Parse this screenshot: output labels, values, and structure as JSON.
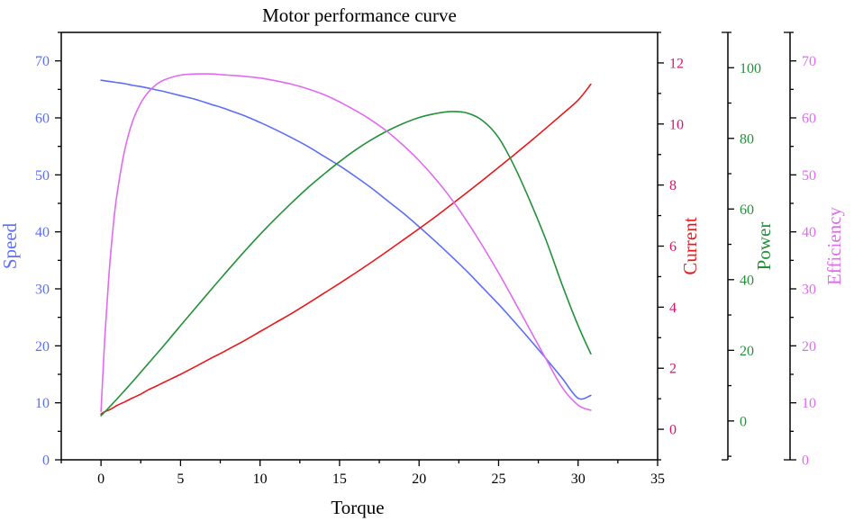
{
  "chart_data": {
    "type": "line",
    "title": "Motor performance curve",
    "xlabel": "Torque",
    "xlim": [
      -2.5,
      35
    ],
    "xticks": [
      0,
      5,
      10,
      15,
      20,
      25,
      30,
      35
    ],
    "x": [
      0,
      0.25,
      0.5,
      0.75,
      1,
      1.5,
      2,
      2.5,
      3,
      3.5,
      4,
      5,
      6,
      7,
      7.5,
      8,
      9,
      10,
      11,
      12,
      13,
      14,
      15,
      16,
      17,
      18,
      19,
      20,
      21,
      22,
      23,
      24,
      25,
      26,
      27,
      28,
      29,
      30,
      30.8
    ],
    "axes": [
      {
        "id": "speed",
        "label": "Speed",
        "color": "#5b6ef5",
        "ylim": [
          0,
          75
        ],
        "ticks": [
          0,
          10,
          20,
          30,
          40,
          50,
          60,
          70
        ],
        "position": "left"
      },
      {
        "id": "current",
        "label": "Current",
        "color": "#e8181b",
        "tick_color": "#d6156a",
        "ylim": [
          -1,
          13
        ],
        "ticks": [
          0,
          2,
          4,
          6,
          8,
          10,
          12
        ],
        "position": "right"
      },
      {
        "id": "power",
        "label": "Power",
        "color": "#22913a",
        "ylim": [
          -11,
          110
        ],
        "ticks": [
          0,
          20,
          40,
          60,
          80,
          100
        ],
        "position": "right-offset-1"
      },
      {
        "id": "efficiency",
        "label": "Efficiency",
        "color": "#e06bf0",
        "ylim": [
          0,
          75
        ],
        "ticks": [
          0,
          10,
          20,
          30,
          40,
          50,
          60,
          70
        ],
        "position": "right-offset-2"
      }
    ],
    "series": [
      {
        "axis": "speed",
        "color": "#5b6ef5",
        "values": [
          66.6,
          66.5,
          66.4,
          66.3,
          66.2,
          66.0,
          65.7,
          65.5,
          65.2,
          64.9,
          64.6,
          63.9,
          63.2,
          62.3,
          61.9,
          61.4,
          60.4,
          59.2,
          57.9,
          56.5,
          55.0,
          53.3,
          51.6,
          49.7,
          47.7,
          45.5,
          43.3,
          40.9,
          38.4,
          35.8,
          33.1,
          30.2,
          27.3,
          24.2,
          21.0,
          17.7,
          14.3,
          10.8,
          11.3
        ]
      },
      {
        "axis": "current",
        "color": "#e8181b",
        "values": [
          0.5,
          0.58,
          0.63,
          0.7,
          0.78,
          0.9,
          1.03,
          1.15,
          1.3,
          1.42,
          1.55,
          1.8,
          2.07,
          2.35,
          2.48,
          2.62,
          2.9,
          3.2,
          3.5,
          3.8,
          4.12,
          4.45,
          4.78,
          5.12,
          5.47,
          5.83,
          6.2,
          6.57,
          6.95,
          7.35,
          7.75,
          8.16,
          8.58,
          9.0,
          9.43,
          9.87,
          10.32,
          10.78,
          11.3
        ]
      },
      {
        "axis": "power",
        "color": "#22913a",
        "values": [
          1.5,
          2.6,
          3.8,
          5.0,
          6.2,
          8.7,
          11.2,
          13.8,
          16.4,
          19.0,
          21.6,
          27.0,
          32.3,
          37.6,
          40.2,
          42.8,
          47.9,
          52.8,
          57.4,
          61.8,
          66.0,
          69.8,
          73.4,
          76.7,
          79.6,
          82.1,
          84.2,
          85.9,
          87.0,
          87.6,
          87.2,
          85.0,
          80.2,
          72.0,
          62.0,
          51.0,
          38.5,
          27.0,
          19.0
        ]
      },
      {
        "axis": "efficiency",
        "color": "#e06bf0",
        "values": [
          8.5,
          22.0,
          32.5,
          40.5,
          46.5,
          54.5,
          59.5,
          62.6,
          64.6,
          65.9,
          66.7,
          67.5,
          67.7,
          67.7,
          67.6,
          67.5,
          67.3,
          67.0,
          66.5,
          65.9,
          65.1,
          64.1,
          62.8,
          61.3,
          59.6,
          57.6,
          55.2,
          52.5,
          49.4,
          45.9,
          41.9,
          37.5,
          32.8,
          27.8,
          22.7,
          17.6,
          12.7,
          9.6,
          8.7
        ]
      }
    ]
  }
}
